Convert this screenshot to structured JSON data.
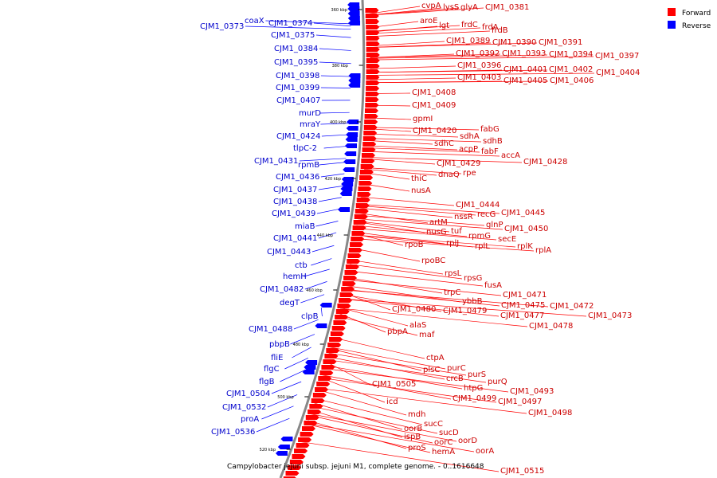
{
  "caption": "Campylobacter jejuni subsp. jejuni M1, complete genome. - 0..1616648",
  "legend": [
    {
      "label": "Forward",
      "color": "#ff0000"
    },
    {
      "label": "Reverse",
      "color": "#0000ff"
    }
  ],
  "colors": {
    "forward_text": "#cc0000",
    "reverse_text": "#0000cc",
    "forward_fill": "#ff0000",
    "reverse_fill": "#0000ff",
    "backbone": "#888888"
  },
  "ticks": [
    "360 kbp",
    "380 kbp",
    "400 kbp",
    "420 kbp",
    "440 kbp",
    "460 kbp",
    "480 kbp",
    "500 kbp",
    "520 kbp"
  ],
  "forward_genes": [
    "cvpA",
    "lysS",
    "glyA",
    "CJM1_0381",
    "aroE",
    "lgt",
    "frdC",
    "frdA",
    "frdB",
    "CJM1_0389",
    "CJM1_0390",
    "CJM1_0391",
    "CJM1_0392",
    "CJM1_0393",
    "CJM1_0394",
    "CJM1_0397",
    "CJM1_0396",
    "CJM1_0401",
    "CJM1_0402",
    "CJM1_0404",
    "CJM1_0403",
    "CJM1_0405",
    "CJM1_0406",
    "CJM1_0408",
    "CJM1_0409",
    "gpmI",
    "CJM1_0420",
    "fabG",
    "sdhA",
    "sdhB",
    "sdhC",
    "acpP",
    "fabF",
    "accA",
    "CJM1_0429",
    "CJM1_0428",
    "dnaQ",
    "rpe",
    "thiC",
    "nusA",
    "CJM1_0444",
    "recG",
    "CJM1_0445",
    "nssR",
    "artM",
    "glnP",
    "CJM1_0450",
    "nusG",
    "tuf",
    "rpmG",
    "secE",
    "rpoB",
    "rplJ",
    "rplL",
    "rplK",
    "rplA",
    "rpoBC",
    "rpsL",
    "rpsG",
    "fusA",
    "trpC",
    "CJM1_0471",
    "ybbB",
    "CJM1_0475",
    "CJM1_0472",
    "CJM1_0480",
    "CJM1_0479",
    "CJM1_0477",
    "CJM1_0473",
    "alaS",
    "CJM1_0478",
    "pbpA",
    "maf",
    "ctpA",
    "plsC",
    "purC",
    "crcB",
    "purS",
    "purQ",
    "htpG",
    "CJM1_0505",
    "CJM1_0493",
    "CJM1_0499",
    "CJM1_0497",
    "icd",
    "CJM1_0498",
    "mdh",
    "sucC",
    "oorB",
    "sucD",
    "ispB",
    "oorC",
    "oorD",
    "proS",
    "hemA",
    "oorA",
    "CJM1_0515"
  ],
  "reverse_genes": [
    "coaX",
    "CJM1_0374",
    "CJM1_0373",
    "CJM1_0375",
    "CJM1_0384",
    "CJM1_0395",
    "CJM1_0398",
    "CJM1_0399",
    "CJM1_0407",
    "murD",
    "mraY",
    "CJM1_0424",
    "tlpC-2",
    "CJM1_0431",
    "rpmB",
    "CJM1_0436",
    "CJM1_0437",
    "CJM1_0438",
    "CJM1_0439",
    "miaB",
    "CJM1_0441",
    "CJM1_0443",
    "ctb",
    "hemH",
    "CJM1_0482",
    "degT",
    "clpB",
    "CJM1_0488",
    "pbpB",
    "fliE",
    "flgC",
    "flgB",
    "CJM1_0504",
    "CJM1_0532",
    "proA",
    "CJM1_0536"
  ]
}
